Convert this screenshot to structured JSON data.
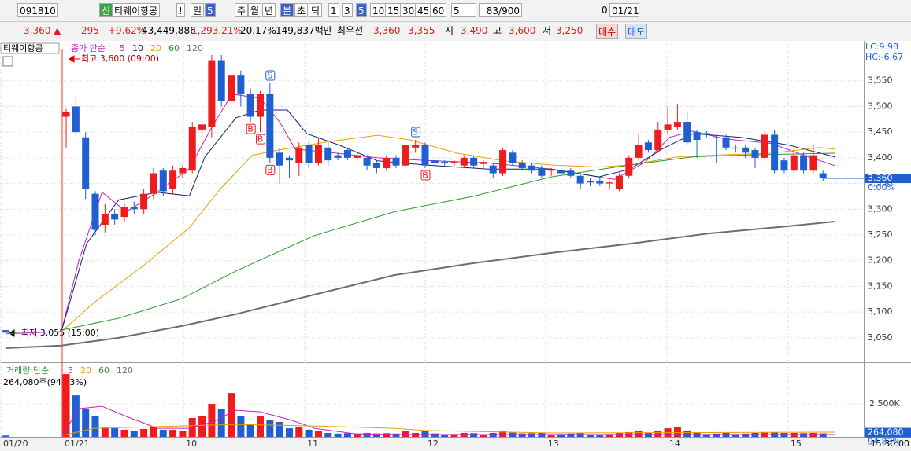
{
  "toolbar": {
    "code": "091810",
    "badge": "신",
    "name": "티웨이항공",
    "alert": "!",
    "periods": [
      "일",
      "5",
      "주",
      "월",
      "년",
      "분",
      "초",
      "틱"
    ],
    "intervals": [
      "1",
      "3",
      "5",
      "10",
      "15",
      "30",
      "45",
      "60"
    ],
    "count": "5",
    "range": "83/900",
    "zero": "0",
    "date": "01/21"
  },
  "quote": {
    "price": "3,360 ▲",
    "change": "295",
    "rate": "+9.62%",
    "volume": "43,449,886",
    "volume_rate": "1,293.21%",
    "turnover": "20.17%",
    "amount": "149,837백만",
    "best": "최우선",
    "ask": "3,360",
    "bid": "3,355",
    "open_label": "시",
    "open": "3,490",
    "high_label": "고",
    "high": "3,600",
    "low_label": "저",
    "low": "3,250",
    "buy": "매수",
    "sell": "매도"
  },
  "chart_data": {
    "type": "candlestick",
    "symbol": "티웨이항공",
    "legend_title": "종가 단순",
    "x": [
      -6.2,
      0,
      1,
      2,
      3,
      4,
      5,
      6,
      7,
      8,
      9,
      10,
      11,
      12,
      13,
      14,
      15,
      16,
      17,
      18,
      19,
      20,
      21,
      22,
      23,
      24,
      25,
      26,
      27,
      28,
      29,
      30,
      31,
      32,
      33,
      34,
      35,
      36,
      37,
      38,
      39,
      40,
      41,
      42,
      43,
      44,
      45,
      46,
      47,
      48,
      49,
      50,
      51,
      52,
      53,
      54,
      55,
      56,
      57,
      58,
      59,
      60,
      61,
      62,
      63,
      64,
      65,
      66,
      67,
      68,
      69,
      70,
      71,
      72,
      73,
      74,
      75,
      76,
      77,
      78
    ],
    "open": [
      3065,
      3480,
      3500,
      3440,
      3330,
      3270,
      3290,
      3285,
      3305,
      3300,
      3330,
      3375,
      3340,
      3370,
      3375,
      3455,
      3460,
      3590,
      3510,
      3560,
      3525,
      3480,
      3525,
      3410,
      3400,
      3390,
      3425,
      3390,
      3420,
      3405,
      3415,
      3400,
      3400,
      3390,
      3380,
      3400,
      3385,
      3420,
      3425,
      3395,
      3392,
      3390,
      3385,
      3400,
      3388,
      3385,
      3370,
      3410,
      3390,
      3385,
      3380,
      3375,
      3375,
      3375,
      3365,
      3355,
      3355,
      3350,
      3340,
      3365,
      3400,
      3430,
      3415,
      3455,
      3460,
      3470,
      3450,
      3448,
      3440,
      3440,
      3420,
      3420,
      3415,
      3400,
      3445,
      3395,
      3375,
      3405,
      3375,
      3370
    ],
    "high": [
      3065,
      3495,
      3520,
      3450,
      3335,
      3310,
      3300,
      3310,
      3315,
      3340,
      3380,
      3380,
      3385,
      3385,
      3470,
      3480,
      3600,
      3600,
      3570,
      3570,
      3535,
      3530,
      3545,
      3420,
      3405,
      3430,
      3430,
      3440,
      3430,
      3410,
      3420,
      3410,
      3405,
      3395,
      3405,
      3405,
      3430,
      3435,
      3430,
      3400,
      3395,
      3395,
      3405,
      3405,
      3395,
      3390,
      3420,
      3415,
      3395,
      3390,
      3385,
      3380,
      3380,
      3380,
      3370,
      3360,
      3360,
      3355,
      3370,
      3405,
      3445,
      3435,
      3470,
      3500,
      3505,
      3490,
      3455,
      3452,
      3445,
      3445,
      3425,
      3425,
      3420,
      3450,
      3455,
      3400,
      3420,
      3410,
      3425,
      3375
    ],
    "low": [
      3055,
      3420,
      3440,
      3320,
      3250,
      3255,
      3270,
      3275,
      3290,
      3290,
      3320,
      3325,
      3330,
      3360,
      3370,
      3400,
      3440,
      3500,
      3505,
      3500,
      3470,
      3450,
      3390,
      3350,
      3360,
      3365,
      3380,
      3385,
      3385,
      3395,
      3395,
      3395,
      3375,
      3370,
      3375,
      3380,
      3380,
      3410,
      3380,
      3385,
      3385,
      3385,
      3380,
      3380,
      3380,
      3360,
      3365,
      3385,
      3375,
      3370,
      3360,
      3365,
      3365,
      3360,
      3340,
      3345,
      3345,
      3340,
      3335,
      3360,
      3395,
      3410,
      3410,
      3445,
      3455,
      3425,
      3400,
      3440,
      3390,
      3415,
      3410,
      3400,
      3380,
      3395,
      3370,
      3370,
      3370,
      3370,
      3370,
      3355
    ],
    "close": [
      3060,
      3490,
      3450,
      3340,
      3260,
      3290,
      3280,
      3305,
      3300,
      3330,
      3370,
      3335,
      3375,
      3380,
      3460,
      3465,
      3590,
      3510,
      3560,
      3525,
      3480,
      3525,
      3400,
      3385,
      3395,
      3420,
      3390,
      3425,
      3395,
      3400,
      3400,
      3405,
      3385,
      3380,
      3400,
      3385,
      3425,
      3425,
      3385,
      3390,
      3390,
      3392,
      3400,
      3385,
      3392,
      3370,
      3415,
      3390,
      3380,
      3375,
      3365,
      3378,
      3370,
      3365,
      3350,
      3352,
      3350,
      3352,
      3365,
      3400,
      3425,
      3415,
      3455,
      3465,
      3470,
      3430,
      3435,
      3445,
      3438,
      3420,
      3418,
      3410,
      3400,
      3445,
      3375,
      3375,
      3405,
      3375,
      3405,
      3360
    ],
    "up_color": "#ee1c1c",
    "down_color": "#1f5fd2",
    "xlim": [
      -6.82,
      82.2
    ],
    "xticks": [
      {
        "value": -6.74,
        "label": "01/20"
      },
      {
        "value": -0.41,
        "label": "01/21"
      },
      {
        "value": 12.1,
        "label": "10"
      },
      {
        "value": 24.6,
        "label": "11"
      },
      {
        "value": 37.0,
        "label": "12"
      },
      {
        "value": 49.4,
        "label": "13"
      },
      {
        "value": 61.9,
        "label": "14"
      },
      {
        "value": 74.4,
        "label": "15"
      }
    ],
    "ylim": [
      3004,
      3626
    ],
    "yticks": [
      {
        "value": 3050,
        "label": "3,050"
      },
      {
        "value": 3100,
        "label": "3,100"
      },
      {
        "value": 3150,
        "label": "3,150"
      },
      {
        "value": 3200,
        "label": "3,200"
      },
      {
        "value": 3250,
        "label": "3,250"
      },
      {
        "value": 3300,
        "label": "3,300"
      },
      {
        "value": 3350,
        "label": "3,350"
      },
      {
        "value": 3400,
        "label": "3,400"
      },
      {
        "value": 3450,
        "label": "3,450"
      },
      {
        "value": 3500,
        "label": "3,500"
      },
      {
        "value": 3550,
        "label": "3,550"
      }
    ],
    "grid": true,
    "moving_averages": [
      {
        "name": "5",
        "color": "#c81ec8",
        "x": [
          -6.2,
          -0.5,
          1.3,
          3.7,
          6.2,
          9.4,
          12.7,
          15.1,
          17.1,
          20,
          22,
          23.6,
          27.3,
          32.1,
          37,
          43.5,
          50,
          56.5,
          59.7,
          62.2,
          64.6,
          67.9,
          72.7,
          76,
          79.2
        ],
        "values": [
          3058,
          3062,
          3200,
          3333,
          3295,
          3333,
          3379,
          3463,
          3524,
          3516,
          3470,
          3417,
          3410,
          3400,
          3395,
          3390,
          3378,
          3358,
          3392,
          3440,
          3452,
          3437,
          3428,
          3405,
          3385
        ]
      },
      {
        "name": "10",
        "color": "#14206e",
        "x": [
          -0.5,
          2.1,
          5.4,
          9.4,
          12.7,
          14.3,
          17.5,
          20,
          22.8,
          24.8,
          28.1,
          32.1,
          37,
          43.5,
          50,
          54.9,
          58.1,
          61.4,
          64.6,
          69.5,
          74.4,
          79.2
        ],
        "values": [
          3062,
          3233,
          3318,
          3333,
          3326,
          3402,
          3478,
          3493,
          3493,
          3447,
          3425,
          3394,
          3386,
          3378,
          3378,
          3363,
          3378,
          3417,
          3447,
          3440,
          3425,
          3402
        ]
      },
      {
        "name": "20",
        "color": "#e8a000",
        "x": [
          -0.5,
          2.9,
          7.8,
          12.7,
          15.9,
          19.2,
          22.4,
          27.3,
          32.1,
          35.4,
          40.3,
          45.1,
          50,
          54.9,
          58.1,
          63,
          67.9,
          72.7,
          77.6,
          79.2
        ],
        "values": [
          3062,
          3119,
          3188,
          3264,
          3340,
          3405,
          3417,
          3432,
          3444,
          3435,
          3409,
          3394,
          3386,
          3382,
          3386,
          3402,
          3406,
          3409,
          3420,
          3417
        ]
      },
      {
        "name": "60",
        "color": "#2f962f",
        "x": [
          -0.5,
          5.4,
          11.9,
          17.5,
          25.6,
          33.8,
          41.9,
          50,
          58.1,
          64.6,
          71.1,
          79.2
        ],
        "values": [
          3065,
          3088,
          3126,
          3180,
          3249,
          3295,
          3325,
          3363,
          3386,
          3402,
          3406,
          3409
        ]
      },
      {
        "name": "120",
        "color": "#6e6e6e",
        "x": [
          -6.2,
          -0.5,
          5.4,
          11.9,
          17.5,
          25.6,
          33.8,
          41.9,
          50,
          58.1,
          66.2,
          74.4,
          79.2
        ],
        "values": [
          3030,
          3035,
          3050,
          3073,
          3096,
          3134,
          3172,
          3195,
          3215,
          3233,
          3253,
          3267,
          3276
        ]
      }
    ],
    "high_note": "최고 3,600 (09:00)",
    "low_note": "최저 3,055 (15:00)",
    "signals": [
      {
        "label": "B",
        "x": 19,
        "position": "below"
      },
      {
        "label": "B",
        "x": 20,
        "position": "below"
      },
      {
        "label": "B",
        "x": 21,
        "position": "below"
      },
      {
        "label": "S",
        "x": 21,
        "position": "above"
      },
      {
        "label": "S",
        "x": 36,
        "position": "above"
      },
      {
        "label": "B",
        "x": 37,
        "position": "below"
      }
    ],
    "corner_labels": [
      "LC:9.98",
      "HC:-6.67"
    ],
    "last_tag": {
      "value": 3360,
      "label": "3,360"
    },
    "last_change": "0.00%",
    "volume": {
      "legend_title": "거래량 단순",
      "summary": "264,080주(94.83%)",
      "values": [
        100000,
        4760000,
        3150000,
        2140000,
        1550000,
        770000,
        650000,
        540000,
        480000,
        600000,
        770000,
        540000,
        540000,
        420000,
        1430000,
        1550000,
        2500000,
        2140000,
        3330000,
        1550000,
        950000,
        1550000,
        1250000,
        1130000,
        650000,
        770000,
        540000,
        420000,
        300000,
        250000,
        280000,
        240000,
        300000,
        260000,
        280000,
        250000,
        420000,
        300000,
        480000,
        260000,
        200000,
        220000,
        300000,
        280000,
        200000,
        300000,
        480000,
        320000,
        260000,
        280000,
        300000,
        200000,
        220000,
        250000,
        320000,
        200000,
        180000,
        220000,
        300000,
        360000,
        480000,
        300000,
        480000,
        650000,
        770000,
        480000,
        300000,
        220000,
        250000,
        300000,
        220000,
        250000,
        300000,
        360000,
        360000,
        300000,
        300000,
        280000,
        300000,
        264080
      ],
      "ylim": [
        0,
        5540000
      ],
      "yticks": [
        {
          "value": 2500000,
          "label": "2,500K"
        }
      ],
      "moving_averages": [
        {
          "name": "5",
          "color": "#c81ec8",
          "x": [
            -0.4,
            1.3,
            3.7,
            6.2,
            9.4,
            12.7,
            15.1,
            17.5,
            20,
            23.3,
            25.6,
            29.7,
            33.8,
            79.2
          ],
          "values": [
            100000,
            2140000,
            2320000,
            1550000,
            650000,
            650000,
            1130000,
            2020000,
            1900000,
            1250000,
            650000,
            240000,
            180000,
            180000
          ]
        },
        {
          "name": "20",
          "color": "#e8a000",
          "x": [
            -0.4,
            2.9,
            17.5,
            25.6,
            33.8,
            37,
            50,
            79.2
          ],
          "values": [
            100000,
            650000,
            950000,
            830000,
            650000,
            480000,
            300000,
            360000
          ]
        },
        {
          "name": "60",
          "color": "#2f962f",
          "x": [],
          "values": []
        },
        {
          "name": "120",
          "color": "#6e6e6e",
          "x": [],
          "values": []
        }
      ],
      "last_tag": {
        "value": 264080,
        "label": "264,080"
      },
      "last_change": "94.83%"
    },
    "time_label": "15:30:00"
  }
}
